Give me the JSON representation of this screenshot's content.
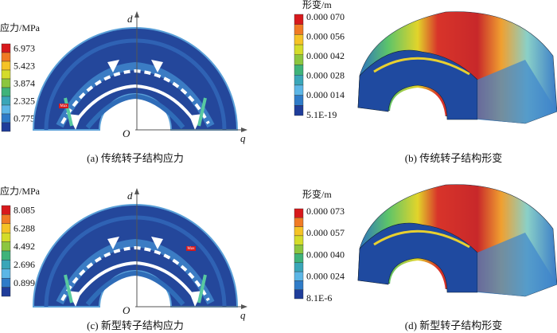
{
  "panels": [
    {
      "legend": {
        "title": "应力/MPa",
        "labels": [
          "6.973",
          "5.423",
          "3.874",
          "2.325",
          "0.775"
        ]
      },
      "axes": {
        "d": "d",
        "q": "q",
        "origin": "O"
      },
      "marker": "Max",
      "caption": "(a) 传统转子结构应力"
    },
    {
      "legend": {
        "title": "形变/m",
        "labels": [
          "0.000 070",
          "0.000 056",
          "0.000 042",
          "0.000 028",
          "0.000 014",
          "5.1E-19"
        ]
      },
      "caption": "(b) 传统转子结构形变"
    },
    {
      "legend": {
        "title": "应力/MPa",
        "labels": [
          "8.085",
          "6.288",
          "4.492",
          "2.696",
          "0.899"
        ]
      },
      "axes": {
        "d": "d",
        "q": "q",
        "origin": "O"
      },
      "marker": "Max",
      "caption": "(c) 新型转子结构应力"
    },
    {
      "legend": {
        "title": "形变/m",
        "labels": [
          "0.000 073",
          "0.000 057",
          "0.000 040",
          "0.000 024",
          "8.1E-6"
        ]
      },
      "caption": "(d) 新型转子结构形变"
    }
  ]
}
